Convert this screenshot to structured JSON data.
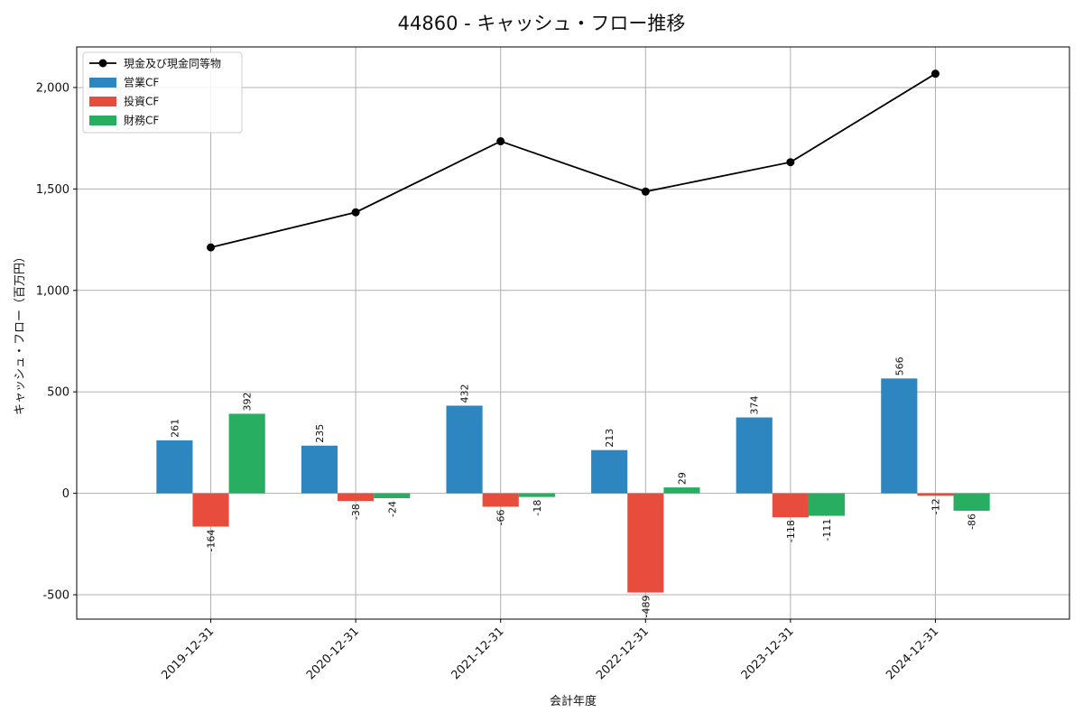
{
  "chart_data": {
    "type": "bar",
    "title": "44860 - キャッシュ・フロー推移",
    "xlabel": "会計年度",
    "ylabel": "キャッシュ・フロー（百万円）",
    "categories": [
      "2019-12-31",
      "2020-12-31",
      "2021-12-31",
      "2022-12-31",
      "2023-12-31",
      "2024-12-31"
    ],
    "ylim": [
      -620,
      2200
    ],
    "yticks": [
      -500,
      0,
      500,
      1000,
      1500,
      2000
    ],
    "ytick_labels": [
      "-500",
      "0",
      "500",
      "1,000",
      "1,500",
      "2,000"
    ],
    "grid": true,
    "legend_position": "top-left",
    "series": [
      {
        "name": "営業CF",
        "kind": "bar",
        "color": "#2e86c1",
        "values": [
          261,
          235,
          432,
          213,
          374,
          566
        ],
        "labels": [
          "261",
          "235",
          "432",
          "213",
          "374",
          "566"
        ]
      },
      {
        "name": "投資CF",
        "kind": "bar",
        "color": "#e74c3c",
        "values": [
          -164,
          -38,
          -66,
          -489,
          -118,
          -12
        ],
        "labels": [
          "-164",
          "-38",
          "-66",
          "-489",
          "-118",
          "-12"
        ]
      },
      {
        "name": "財務CF",
        "kind": "bar",
        "color": "#27ae60",
        "values": [
          392,
          -24,
          -18,
          29,
          -111,
          -86
        ],
        "labels": [
          "392",
          "-24",
          "-18",
          "29",
          "-111",
          "-86"
        ]
      }
    ],
    "line": {
      "name": "現金及び現金同等物",
      "kind": "line",
      "color": "#000000",
      "values": [
        1212,
        1385,
        1735,
        1487,
        1632,
        2068
      ]
    },
    "legend_order": [
      "現金及び現金同等物",
      "営業CF",
      "投資CF",
      "財務CF"
    ]
  }
}
